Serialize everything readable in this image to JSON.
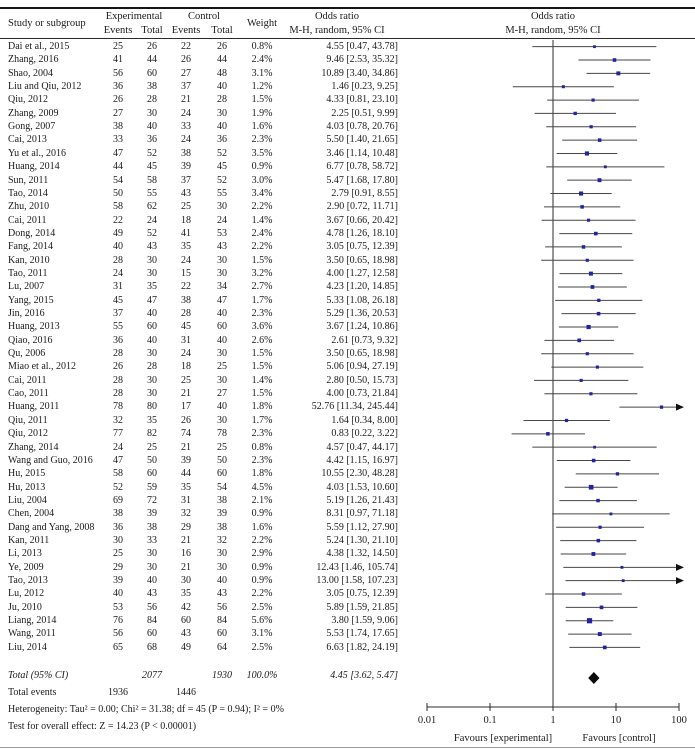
{
  "header": {
    "study_col": "Study or subgroup",
    "experimental_group": "Experimental",
    "control_group": "Control",
    "events_col": "Events",
    "total_col": "Total",
    "weight_col": "Weight",
    "or_col_line1": "Odds ratio",
    "or_col_line2": "M-H, random, 95% CI",
    "plot_title_line1": "Odds ratio",
    "plot_title_line2": "M-H, random, 95% CI"
  },
  "colors": {
    "marker": "#24249c",
    "ci_line": "#464646",
    "diamond": "#0b0b0b",
    "axis": "#2b2b2b",
    "text": "#1b1b1b"
  },
  "chart_data": {
    "type": "forest",
    "effect_measure": "Odds ratio, M-H, random, 95% CI",
    "x_scale": "log10",
    "x_min": 0.01,
    "x_max": 100,
    "axis_ticks": [
      0.01,
      0.1,
      1,
      10,
      100
    ],
    "axis_tick_labels": [
      "0.01",
      "0.1",
      "1",
      "10",
      "100"
    ],
    "favours_left": "Favours [experimental]",
    "favours_right": "Favours [control]",
    "studies": [
      {
        "name": "Dai et al., 2015",
        "ee": "25",
        "et": "26",
        "ce": "22",
        "ct": "26",
        "w": "0.8%",
        "or_label": "4.55 [0.47, 43.78]",
        "or": 4.55,
        "lo": 0.47,
        "hi": 43.78
      },
      {
        "name": "Zhang, 2016",
        "ee": "41",
        "et": "44",
        "ce": "26",
        "ct": "44",
        "w": "2.4%",
        "or_label": "9.46 [2.53, 35.32]",
        "or": 9.46,
        "lo": 2.53,
        "hi": 35.32
      },
      {
        "name": "Shao, 2004",
        "ee": "56",
        "et": "60",
        "ce": "27",
        "ct": "48",
        "w": "3.1%",
        "or_label": "10.89 [3.40, 34.86]",
        "or": 10.89,
        "lo": 3.4,
        "hi": 34.86
      },
      {
        "name": "Liu and Qiu, 2012",
        "ee": "36",
        "et": "38",
        "ce": "37",
        "ct": "40",
        "w": "1.2%",
        "or_label": "1.46 [0.23, 9.25]",
        "or": 1.46,
        "lo": 0.23,
        "hi": 9.25
      },
      {
        "name": "Qiu, 2012",
        "ee": "26",
        "et": "28",
        "ce": "21",
        "ct": "28",
        "w": "1.5%",
        "or_label": "4.33 [0.81, 23.10]",
        "or": 4.33,
        "lo": 0.81,
        "hi": 23.1
      },
      {
        "name": "Zhang, 2009",
        "ee": "27",
        "et": "30",
        "ce": "24",
        "ct": "30",
        "w": "1.9%",
        "or_label": "2.25 [0.51, 9.99]",
        "or": 2.25,
        "lo": 0.51,
        "hi": 9.99
      },
      {
        "name": "Gong, 2007",
        "ee": "38",
        "et": "40",
        "ce": "33",
        "ct": "40",
        "w": "1.6%",
        "or_label": "4.03 [0.78, 20.76]",
        "or": 4.03,
        "lo": 0.78,
        "hi": 20.76
      },
      {
        "name": "Cai, 2013",
        "ee": "33",
        "et": "36",
        "ce": "24",
        "ct": "36",
        "w": "2.3%",
        "or_label": "5.50 [1.40, 21.65]",
        "or": 5.5,
        "lo": 1.4,
        "hi": 21.65
      },
      {
        "name": "Yu et al., 2016",
        "ee": "47",
        "et": "52",
        "ce": "38",
        "ct": "52",
        "w": "3.5%",
        "or_label": "3.46 [1.14, 10.48]",
        "or": 3.46,
        "lo": 1.14,
        "hi": 10.48
      },
      {
        "name": "Huang, 2014",
        "ee": "44",
        "et": "45",
        "ce": "39",
        "ct": "45",
        "w": "0.9%",
        "or_label": "6.77 [0.78, 58.72]",
        "or": 6.77,
        "lo": 0.78,
        "hi": 58.72
      },
      {
        "name": "Sun, 2011",
        "ee": "54",
        "et": "58",
        "ce": "37",
        "ct": "52",
        "w": "3.0%",
        "or_label": "5.47 [1.68, 17.80]",
        "or": 5.47,
        "lo": 1.68,
        "hi": 17.8
      },
      {
        "name": "Tao, 2014",
        "ee": "50",
        "et": "55",
        "ce": "43",
        "ct": "55",
        "w": "3.4%",
        "or_label": "2.79 [0.91, 8.55]",
        "or": 2.79,
        "lo": 0.91,
        "hi": 8.55
      },
      {
        "name": "Zhu, 2010",
        "ee": "58",
        "et": "62",
        "ce": "25",
        "ct": "30",
        "w": "2.2%",
        "or_label": "2.90 [0.72, 11.71]",
        "or": 2.9,
        "lo": 0.72,
        "hi": 11.71
      },
      {
        "name": "Cai, 2011",
        "ee": "22",
        "et": "24",
        "ce": "18",
        "ct": "24",
        "w": "1.4%",
        "or_label": "3.67 [0.66, 20.42]",
        "or": 3.67,
        "lo": 0.66,
        "hi": 20.42
      },
      {
        "name": "Dong, 2014",
        "ee": "49",
        "et": "52",
        "ce": "41",
        "ct": "53",
        "w": "2.4%",
        "or_label": "4.78 [1.26, 18.10]",
        "or": 4.78,
        "lo": 1.26,
        "hi": 18.1
      },
      {
        "name": "Fang, 2014",
        "ee": "40",
        "et": "43",
        "ce": "35",
        "ct": "43",
        "w": "2.2%",
        "or_label": "3.05 [0.75, 12.39]",
        "or": 3.05,
        "lo": 0.75,
        "hi": 12.39
      },
      {
        "name": "Kan, 2010",
        "ee": "28",
        "et": "30",
        "ce": "24",
        "ct": "30",
        "w": "1.5%",
        "or_label": "3.50 [0.65, 18.98]",
        "or": 3.5,
        "lo": 0.65,
        "hi": 18.98
      },
      {
        "name": "Tao, 2011",
        "ee": "24",
        "et": "30",
        "ce": "15",
        "ct": "30",
        "w": "3.2%",
        "or_label": "4.00 [1.27, 12.58]",
        "or": 4.0,
        "lo": 1.27,
        "hi": 12.58
      },
      {
        "name": "Lu, 2007",
        "ee": "31",
        "et": "35",
        "ce": "22",
        "ct": "34",
        "w": "2.7%",
        "or_label": "4.23 [1.20, 14.85]",
        "or": 4.23,
        "lo": 1.2,
        "hi": 14.85
      },
      {
        "name": "Yang, 2015",
        "ee": "45",
        "et": "47",
        "ce": "38",
        "ct": "47",
        "w": "1.7%",
        "or_label": "5.33 [1.08, 26.18]",
        "or": 5.33,
        "lo": 1.08,
        "hi": 26.18
      },
      {
        "name": "Jin, 2016",
        "ee": "37",
        "et": "40",
        "ce": "28",
        "ct": "40",
        "w": "2.3%",
        "or_label": "5.29 [1.36, 20.53]",
        "or": 5.29,
        "lo": 1.36,
        "hi": 20.53
      },
      {
        "name": "Huang, 2013",
        "ee": "55",
        "et": "60",
        "ce": "45",
        "ct": "60",
        "w": "3.6%",
        "or_label": "3.67 [1.24, 10.86]",
        "or": 3.67,
        "lo": 1.24,
        "hi": 10.86
      },
      {
        "name": "Qiao, 2016",
        "ee": "36",
        "et": "40",
        "ce": "31",
        "ct": "40",
        "w": "2.6%",
        "or_label": "2.61 [0.73, 9.32]",
        "or": 2.61,
        "lo": 0.73,
        "hi": 9.32
      },
      {
        "name": "Qu, 2006",
        "ee": "28",
        "et": "30",
        "ce": "24",
        "ct": "30",
        "w": "1.5%",
        "or_label": "3.50 [0.65, 18.98]",
        "or": 3.5,
        "lo": 0.65,
        "hi": 18.98
      },
      {
        "name": "Miao et al., 2012",
        "ee": "26",
        "et": "28",
        "ce": "18",
        "ct": "25",
        "w": "1.5%",
        "or_label": "5.06 [0.94, 27.19]",
        "or": 5.06,
        "lo": 0.94,
        "hi": 27.19
      },
      {
        "name": "Cai, 2011",
        "ee": "28",
        "et": "30",
        "ce": "25",
        "ct": "30",
        "w": "1.4%",
        "or_label": "2.80 [0.50, 15.73]",
        "or": 2.8,
        "lo": 0.5,
        "hi": 15.73
      },
      {
        "name": "Cao, 2011",
        "ee": "28",
        "et": "30",
        "ce": "21",
        "ct": "27",
        "w": "1.5%",
        "or_label": "4.00 [0.73, 21.84]",
        "or": 4.0,
        "lo": 0.73,
        "hi": 21.84
      },
      {
        "name": "Huang, 2011",
        "ee": "78",
        "et": "80",
        "ce": "17",
        "ct": "40",
        "w": "1.8%",
        "or_label": "52.76 [11.34, 245.44]",
        "or": 52.76,
        "lo": 11.34,
        "hi": 245.44
      },
      {
        "name": "Qiu, 2011",
        "ee": "32",
        "et": "35",
        "ce": "26",
        "ct": "30",
        "w": "1.7%",
        "or_label": "1.64 [0.34, 8.00]",
        "or": 1.64,
        "lo": 0.34,
        "hi": 8.0
      },
      {
        "name": "Qiu, 2012",
        "ee": "77",
        "et": "82",
        "ce": "74",
        "ct": "78",
        "w": "2.3%",
        "or_label": "0.83 [0.22, 3.22]",
        "or": 0.83,
        "lo": 0.22,
        "hi": 3.22
      },
      {
        "name": "Zhang, 2014",
        "ee": "24",
        "et": "25",
        "ce": "21",
        "ct": "25",
        "w": "0.8%",
        "or_label": "4.57 [0.47, 44.17]",
        "or": 4.57,
        "lo": 0.47,
        "hi": 44.17
      },
      {
        "name": "Wang and Guo, 2016",
        "ee": "47",
        "et": "50",
        "ce": "39",
        "ct": "50",
        "w": "2.3%",
        "or_label": "4.42 [1.15, 16.97]",
        "or": 4.42,
        "lo": 1.15,
        "hi": 16.97
      },
      {
        "name": "Hu, 2015",
        "ee": "58",
        "et": "60",
        "ce": "44",
        "ct": "60",
        "w": "1.8%",
        "or_label": "10.55 [2.30, 48.28]",
        "or": 10.55,
        "lo": 2.3,
        "hi": 48.28
      },
      {
        "name": "Hu, 2013",
        "ee": "52",
        "et": "59",
        "ce": "35",
        "ct": "54",
        "w": "4.5%",
        "or_label": "4.03 [1.53, 10.60]",
        "or": 4.03,
        "lo": 1.53,
        "hi": 10.6
      },
      {
        "name": "Liu, 2004",
        "ee": "69",
        "et": "72",
        "ce": "31",
        "ct": "38",
        "w": "2.1%",
        "or_label": "5.19 [1.26, 21.43]",
        "or": 5.19,
        "lo": 1.26,
        "hi": 21.43
      },
      {
        "name": "Chen, 2004",
        "ee": "38",
        "et": "39",
        "ce": "32",
        "ct": "39",
        "w": "0.9%",
        "or_label": "8.31 [0.97, 71.18]",
        "or": 8.31,
        "lo": 0.97,
        "hi": 71.18
      },
      {
        "name": "Dang and Yang, 2008",
        "ee": "36",
        "et": "38",
        "ce": "29",
        "ct": "38",
        "w": "1.6%",
        "or_label": "5.59 [1.12, 27.90]",
        "or": 5.59,
        "lo": 1.12,
        "hi": 27.9
      },
      {
        "name": "Kan, 2011",
        "ee": "30",
        "et": "33",
        "ce": "21",
        "ct": "32",
        "w": "2.2%",
        "or_label": "5.24 [1.30, 21.10]",
        "or": 5.24,
        "lo": 1.3,
        "hi": 21.1
      },
      {
        "name": "Li, 2013",
        "ee": "25",
        "et": "30",
        "ce": "16",
        "ct": "30",
        "w": "2.9%",
        "or_label": "4.38 [1.32, 14.50]",
        "or": 4.38,
        "lo": 1.32,
        "hi": 14.5
      },
      {
        "name": "Ye, 2009",
        "ee": "29",
        "et": "30",
        "ce": "21",
        "ct": "30",
        "w": "0.9%",
        "or_label": "12.43 [1.46, 105.74]",
        "or": 12.43,
        "lo": 1.46,
        "hi": 105.74
      },
      {
        "name": "Tao, 2013",
        "ee": "39",
        "et": "40",
        "ce": "30",
        "ct": "40",
        "w": "0.9%",
        "or_label": "13.00 [1.58, 107.23]",
        "or": 13.0,
        "lo": 1.58,
        "hi": 107.23
      },
      {
        "name": "Lu, 2012",
        "ee": "40",
        "et": "43",
        "ce": "35",
        "ct": "43",
        "w": "2.2%",
        "or_label": "3.05 [0.75, 12.39]",
        "or": 3.05,
        "lo": 0.75,
        "hi": 12.39
      },
      {
        "name": "Ju, 2010",
        "ee": "53",
        "et": "56",
        "ce": "42",
        "ct": "56",
        "w": "2.5%",
        "or_label": "5.89 [1.59, 21.85]",
        "or": 5.89,
        "lo": 1.59,
        "hi": 21.85
      },
      {
        "name": "Liang, 2014",
        "ee": "76",
        "et": "84",
        "ce": "60",
        "ct": "84",
        "w": "5.6%",
        "or_label": "3.80 [1.59, 9.06]",
        "or": 3.8,
        "lo": 1.59,
        "hi": 9.06
      },
      {
        "name": "Wang, 2011",
        "ee": "56",
        "et": "60",
        "ce": "43",
        "ct": "60",
        "w": "3.1%",
        "or_label": "5.53 [1.74, 17.65]",
        "or": 5.53,
        "lo": 1.74,
        "hi": 17.65
      },
      {
        "name": "Liu, 2014",
        "ee": "65",
        "et": "68",
        "ce": "49",
        "ct": "64",
        "w": "2.5%",
        "or_label": "6.63 [1.82, 24.19]",
        "or": 6.63,
        "lo": 1.82,
        "hi": 24.19
      }
    ],
    "total": {
      "label": "Total (95% CI)",
      "e_total": "2077",
      "c_total": "1930",
      "weight": "100.0%",
      "or_label": "4.45 [3.62, 5.47]",
      "or": 4.45,
      "lo": 3.62,
      "hi": 5.47
    },
    "total_events": {
      "label": "Total events",
      "experimental": "1936",
      "control": "1446"
    },
    "heterogeneity": "Heterogeneity: Tau² = 0.00; Chi² = 31.38; df = 45 (P = 0.94); I² = 0%",
    "overall_effect": "Test for overall effect: Z = 14.23 (P < 0.00001)"
  }
}
